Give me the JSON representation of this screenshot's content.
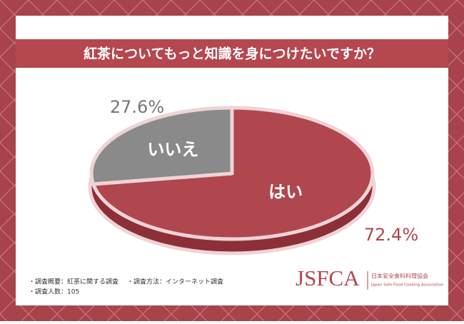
{
  "chart_data": {
    "type": "pie",
    "title": "紅茶についてもっと知識を身につけたいですか？",
    "categories": [
      "はい",
      "いいえ"
    ],
    "values": [
      72.4,
      27.6
    ],
    "value_labels": [
      "72.4%",
      "27.6%"
    ],
    "colors": [
      "#b0474e",
      "#8a8a8a"
    ]
  },
  "notes": [
    "・調査概要：紅茶に関する調査",
    "・調査方法：インターネット調査",
    "・調査人数：105"
  ],
  "logo": {
    "mark": "JSFCA",
    "name": "日本安全食料料理協会",
    "name_en": "Japan Safe Food Cooking Association"
  }
}
